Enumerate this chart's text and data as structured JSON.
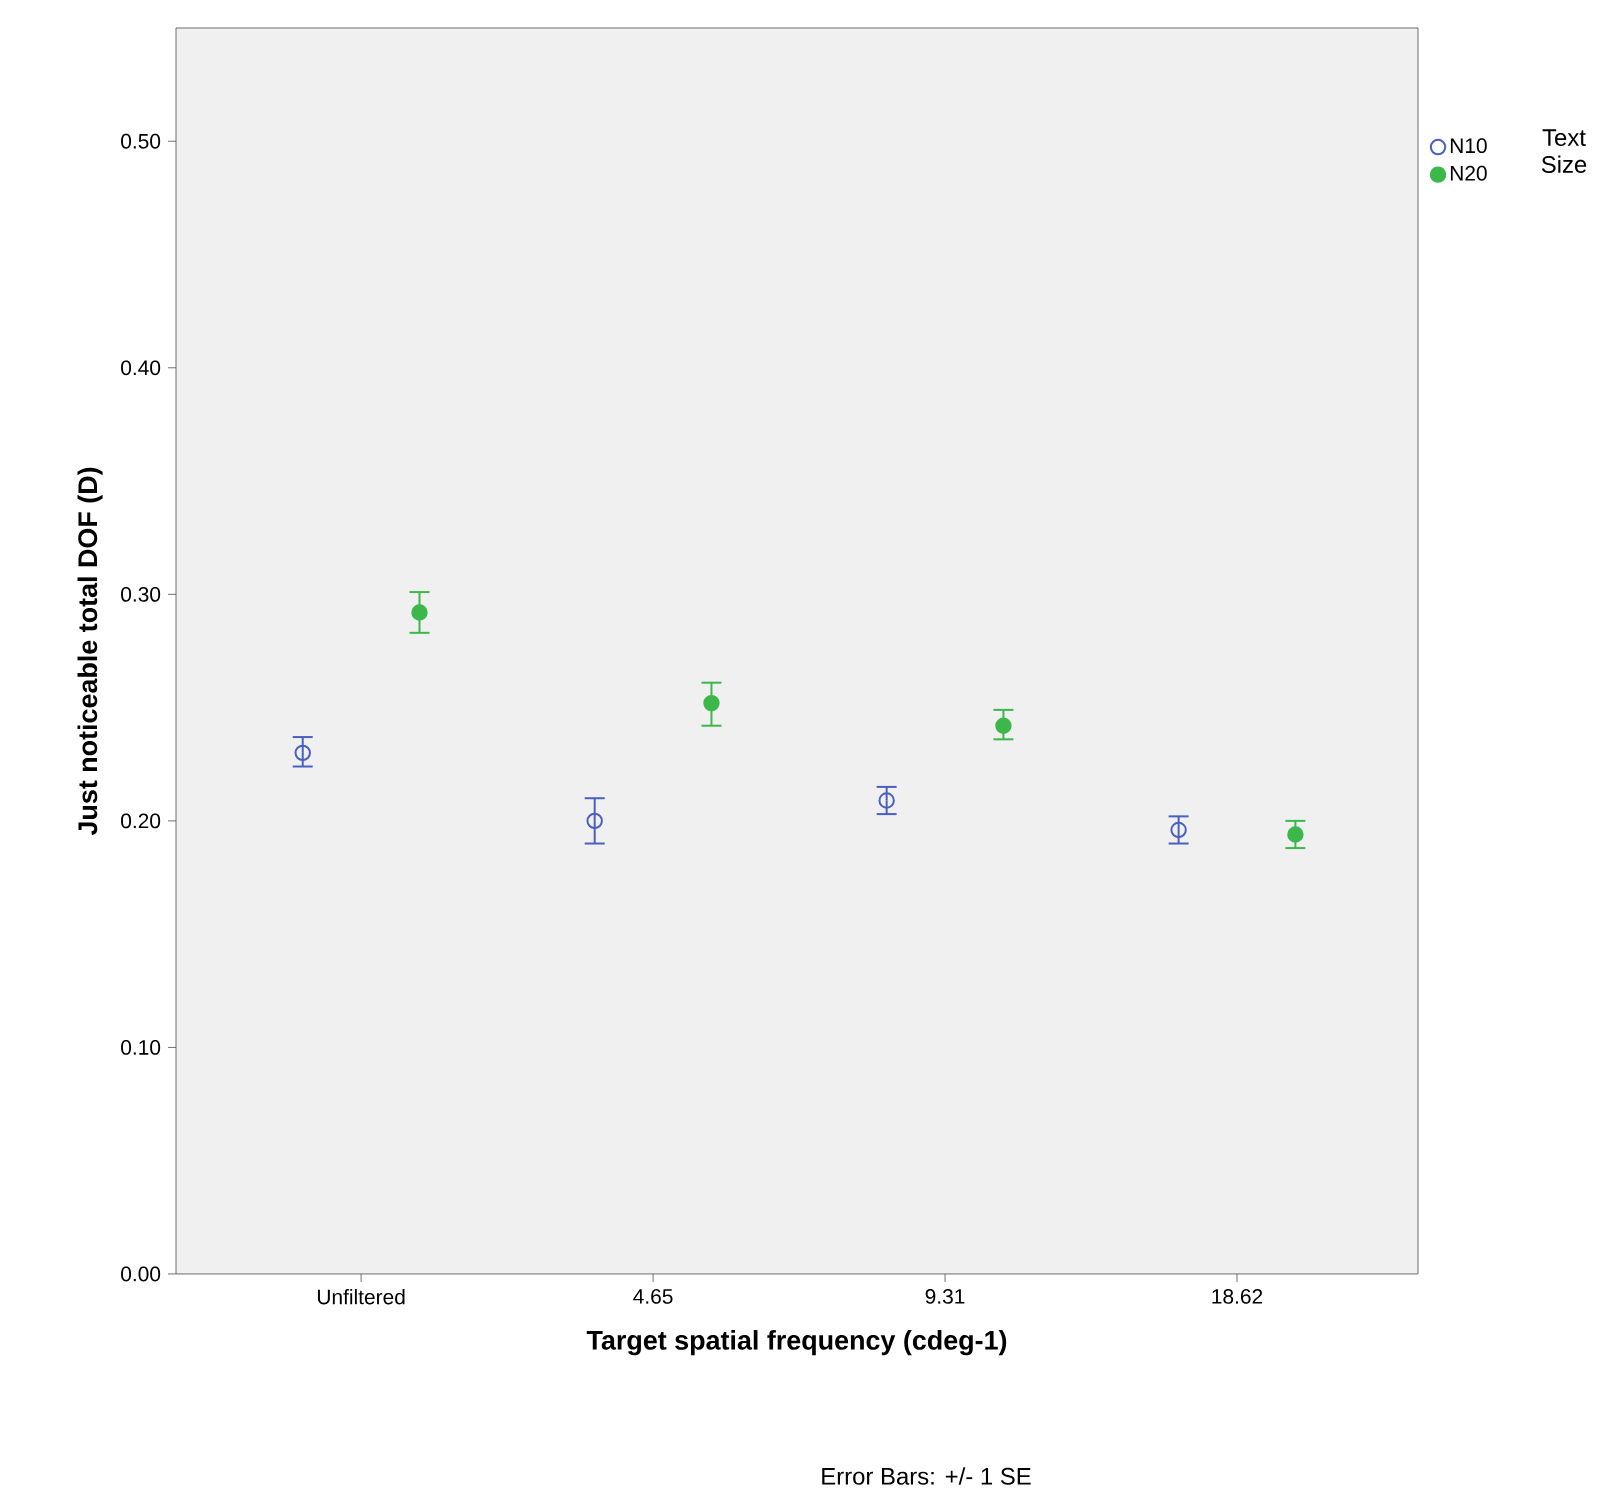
{
  "chart_data": {
    "type": "scatter",
    "xlabel": "Target spatial frequency (cdeg-1)",
    "ylabel": "Just noticeable total DOF (D)",
    "categories": [
      "Unfiltered",
      "4.65",
      "9.31",
      "18.62"
    ],
    "series": [
      {
        "name": "N10",
        "color": "#4a5fbf",
        "values": [
          0.23,
          0.2,
          0.209,
          0.196
        ],
        "errors": [
          [
            0.224,
            0.237
          ],
          [
            0.19,
            0.21
          ],
          [
            0.203,
            0.215
          ],
          [
            0.19,
            0.202
          ]
        ]
      },
      {
        "name": "N20",
        "color": "#3cb84a",
        "values": [
          0.292,
          0.252,
          0.242,
          0.194
        ],
        "errors": [
          [
            0.283,
            0.301
          ],
          [
            0.242,
            0.261
          ],
          [
            0.236,
            0.249
          ],
          [
            0.188,
            0.2
          ]
        ]
      }
    ],
    "ylim": [
      0,
      0.55
    ],
    "yticks": [
      {
        "value": 0,
        "label": "0.00"
      },
      {
        "value": 0.1,
        "label": "0.10"
      },
      {
        "value": 0.2,
        "label": "0.20"
      },
      {
        "value": 0.3,
        "label": "0.30"
      },
      {
        "value": 0.4,
        "label": "0.40"
      },
      {
        "value": 0.5,
        "label": "0.50"
      }
    ],
    "marker": "circle",
    "grid": false,
    "legend": "top right",
    "legend_title": "Text Size",
    "annotations": [
      "Error Bars: +/- 1 SE"
    ]
  }
}
